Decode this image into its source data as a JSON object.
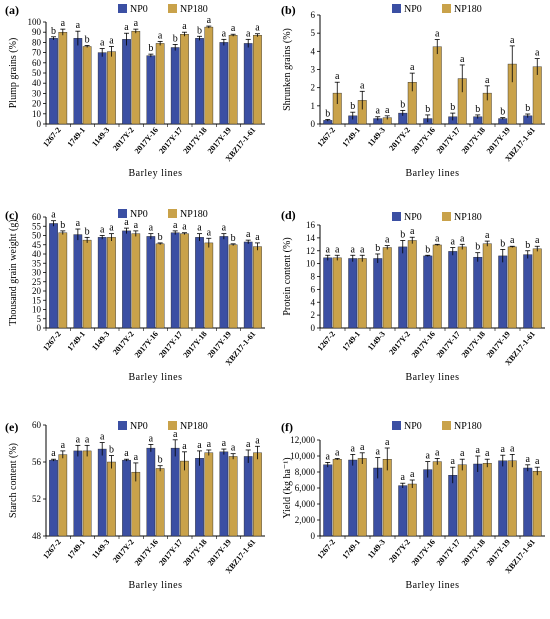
{
  "colors": {
    "np0": "#3b4fa3",
    "np180": "#c9a24a",
    "np180_alt": "#e07a6e"
  },
  "legend": {
    "np0": "NP0",
    "np180": "NP180"
  },
  "xlabel": "Barley lines",
  "chart_data": [
    {
      "type": "bar",
      "panel": "(a)",
      "ylabel": "Plump grains (%)",
      "ylim": [
        0,
        100
      ],
      "yticks": [
        0,
        10,
        20,
        30,
        40,
        50,
        60,
        70,
        80,
        90,
        100
      ],
      "categories": [
        "1267-2",
        "1749-1",
        "1149-3",
        "2017Y-2",
        "2017Y-16",
        "2017Y-17",
        "2017Y-18",
        "2017Y-19",
        "XBZ17-1-61"
      ],
      "series": [
        {
          "name": "NP0",
          "values": [
            84,
            84,
            70,
            83,
            67,
            75,
            84,
            80,
            79
          ],
          "errors": [
            1.5,
            7,
            4,
            6,
            1.5,
            3,
            2,
            3,
            4
          ],
          "letters": [
            "b",
            "a",
            "a",
            "a",
            "b",
            "b",
            "b",
            "a",
            "a"
          ]
        },
        {
          "name": "NP180",
          "values": [
            90,
            76,
            71,
            91,
            79,
            88,
            95,
            87,
            87
          ],
          "errors": [
            3,
            1,
            5,
            2,
            2,
            2,
            1,
            1,
            1.5
          ],
          "letters": [
            "a",
            "b",
            "a",
            "a",
            "a",
            "a",
            "a",
            "a",
            "a"
          ]
        }
      ]
    },
    {
      "type": "bar",
      "panel": "(b)",
      "ylabel": "Shrunken grains (%)",
      "ylim": [
        0,
        6
      ],
      "yticks": [
        0,
        1,
        2,
        3,
        4,
        5,
        6
      ],
      "categories": [
        "1267-2",
        "1749-1",
        "1149-3",
        "2017Y-2",
        "2017Y-16",
        "2017Y-17",
        "2017Y-18",
        "2017Y-19",
        "XBZ17-1-61"
      ],
      "series": [
        {
          "name": "NP0",
          "values": [
            0.2,
            0.45,
            0.3,
            0.6,
            0.3,
            0.4,
            0.4,
            0.3,
            0.45
          ],
          "errors": [
            0.05,
            0.2,
            0.1,
            0.15,
            0.2,
            0.2,
            0.1,
            0.05,
            0.1
          ],
          "letters": [
            "b",
            "b",
            "a",
            "b",
            "b",
            "b",
            "b",
            "b",
            "b"
          ]
        },
        {
          "name": "NP180",
          "values": [
            1.7,
            1.3,
            0.35,
            2.3,
            4.25,
            2.5,
            1.7,
            3.3,
            3.15
          ],
          "errors": [
            0.6,
            0.5,
            0.1,
            0.5,
            0.4,
            0.75,
            0.4,
            1.0,
            0.45
          ],
          "letters": [
            "a",
            "a",
            "a",
            "a",
            "a",
            "a",
            "a",
            "a",
            "a"
          ]
        }
      ]
    },
    {
      "type": "bar",
      "panel": "(c)",
      "ylabel": "Thousand grain weight (g)",
      "ylim": [
        0,
        60
      ],
      "yticks": [
        0,
        5,
        10,
        15,
        20,
        25,
        30,
        35,
        40,
        45,
        50,
        55,
        60
      ],
      "categories": [
        "1267-2",
        "1749-1",
        "1149-3",
        "2017Y-2",
        "2017Y-16",
        "2017Y-17",
        "2017Y-18",
        "2017Y-19",
        "XBZ17-1-61"
      ],
      "series": [
        {
          "name": "NP0",
          "values": [
            56.5,
            50.5,
            49,
            52.5,
            49.5,
            51.5,
            49,
            49.5,
            46.5
          ],
          "errors": [
            1.5,
            3,
            1,
            1.5,
            1.5,
            1,
            2,
            1.5,
            1
          ],
          "letters": [
            "a",
            "a",
            "a",
            "a",
            "a",
            "a",
            "a",
            "a",
            "a"
          ]
        },
        {
          "name": "NP180",
          "values": [
            51.5,
            47.5,
            49,
            51,
            45.5,
            51,
            46,
            45,
            44
          ],
          "errors": [
            1,
            1.5,
            2,
            1.5,
            0.5,
            0.5,
            2.5,
            0.5,
            2
          ],
          "letters": [
            "b",
            "b",
            "a",
            "a",
            "b",
            "a",
            "a",
            "b",
            "a"
          ]
        }
      ]
    },
    {
      "type": "bar",
      "panel": "(d)",
      "ylabel": "Protein content (%)",
      "ylim": [
        0,
        16
      ],
      "yticks": [
        0,
        2,
        4,
        6,
        8,
        10,
        12,
        14,
        16
      ],
      "categories": [
        "1267-2",
        "1749-1",
        "1149-3",
        "2017Y-2",
        "2017Y-16",
        "2017Y-17",
        "2017Y-18",
        "2017Y-19",
        "XBZ17-1-61"
      ],
      "series": [
        {
          "name": "NP0",
          "values": [
            10.9,
            10.8,
            10.8,
            12.6,
            11.2,
            11.9,
            11.0,
            11.2,
            11.4
          ],
          "errors": [
            0.4,
            0.5,
            0.7,
            1.0,
            0.1,
            0.6,
            0.7,
            1.0,
            0.6
          ],
          "letters": [
            "a",
            "a",
            "b",
            "b",
            "b",
            "a",
            "b",
            "b",
            "b"
          ]
        },
        {
          "name": "NP180",
          "values": [
            10.9,
            10.8,
            12.5,
            13.6,
            12.9,
            12.6,
            13.1,
            12.6,
            12.3
          ],
          "errors": [
            0.4,
            0.5,
            0.3,
            0.5,
            0.1,
            0.4,
            0.4,
            0.1,
            0.4
          ],
          "letters": [
            "a",
            "a",
            "a",
            "a",
            "a",
            "a",
            "a",
            "a",
            "a"
          ]
        }
      ]
    },
    {
      "type": "bar",
      "panel": "(e)",
      "ylabel": "Starch content (%)",
      "ylim": [
        48,
        60
      ],
      "yticks": [
        48,
        52,
        56,
        60
      ],
      "categories": [
        "1267-2",
        "1749-1",
        "1149-3",
        "2017Y-2",
        "2017Y-16",
        "2017Y-17",
        "2017Y-18",
        "2017Y-19",
        "XBZ17-1-61"
      ],
      "series": [
        {
          "name": "NP0",
          "values": [
            56.2,
            57.2,
            57.4,
            56.2,
            57.5,
            57.5,
            56.4,
            57.1,
            56.6
          ],
          "errors": [
            0.1,
            0.6,
            0.7,
            0.1,
            0.4,
            0.9,
            0.8,
            0.3,
            0.7
          ],
          "letters": [
            "a",
            "a",
            "a",
            "a",
            "a",
            "a",
            "a",
            "a",
            "a"
          ]
        },
        {
          "name": "NP180",
          "values": [
            56.8,
            57.2,
            56.0,
            54.9,
            55.3,
            56.1,
            57.0,
            56.6,
            57.0
          ],
          "errors": [
            0.4,
            0.6,
            0.7,
            1.0,
            0.3,
            1.0,
            0.3,
            0.3,
            0.7
          ],
          "letters": [
            "a",
            "a",
            "b",
            "a",
            "b",
            "a",
            "a",
            "a",
            "a"
          ]
        }
      ]
    },
    {
      "type": "bar",
      "panel": "(f)",
      "ylabel": "Yield (kg ha⁻¹)",
      "ylim": [
        0,
        12000
      ],
      "yticks": [
        0,
        2000,
        4000,
        6000,
        8000,
        10000,
        12000
      ],
      "yticklabels": [
        "0",
        "2,000",
        "4,000",
        "6,000",
        "8,000",
        "10,000",
        "12,000"
      ],
      "categories": [
        "1267-2",
        "1749-1",
        "1149-3",
        "2017Y-2",
        "2017Y-16",
        "2017Y-17",
        "2017Y-18",
        "2017Y-19",
        "XBZ17-1-61"
      ],
      "series": [
        {
          "name": "NP0",
          "values": [
            8900,
            9500,
            8500,
            6300,
            8300,
            7600,
            9000,
            9400,
            8500
          ],
          "errors": [
            300,
            700,
            1300,
            300,
            1000,
            1000,
            1000,
            700,
            400
          ],
          "letters": [
            "a",
            "a",
            "a",
            "a",
            "a",
            "a",
            "a",
            "a",
            "a"
          ]
        },
        {
          "name": "NP180",
          "values": [
            9600,
            9700,
            9600,
            6500,
            9300,
            8900,
            9100,
            9400,
            8100
          ],
          "errors": [
            100,
            700,
            1400,
            500,
            400,
            700,
            500,
            800,
            500
          ],
          "letters": [
            "a",
            "a",
            "a",
            "a",
            "a",
            "a",
            "a",
            "a",
            "a"
          ]
        }
      ]
    }
  ]
}
